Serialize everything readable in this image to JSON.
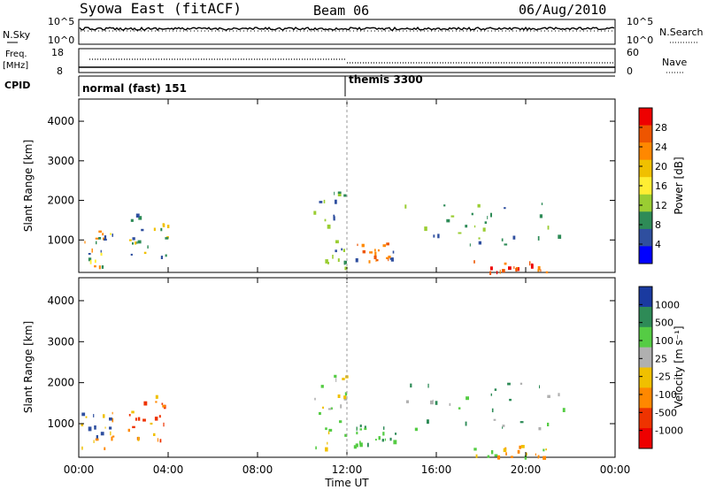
{
  "header": {
    "title": "Syowa East (fitACF)",
    "beam": "Beam 06",
    "date": "06/Aug/2010"
  },
  "top_panels": {
    "nsky_label": "N.Sky",
    "nsky_ticks": [
      "10^5",
      "10^0"
    ],
    "nsearch_label": "N.Search",
    "nsearch_ticks": [
      "10^5",
      "10^0"
    ],
    "freq_label": "Freq.",
    "freq_unit": "[MHz]",
    "freq_ticks": [
      "18",
      "8"
    ],
    "nave_label": "Nave",
    "nave_ticks": [
      "60",
      "0"
    ],
    "cpid_label": "CPID",
    "modes": [
      "normal (fast) 151",
      "themis 3300"
    ]
  },
  "x_axis": {
    "title": "Time UT",
    "ticks": [
      "00:00",
      "04:00",
      "08:00",
      "12:00",
      "16:00",
      "20:00",
      "00:00"
    ]
  },
  "chart_data": [
    {
      "type": "heatmap",
      "name": "power",
      "ylabel": "Slant Range [km]",
      "yticks": [
        "1000",
        "2000",
        "3000",
        "4000"
      ],
      "ylim": [
        180,
        4560
      ],
      "xlim_hours": [
        0,
        24
      ],
      "colorbar_label": "Power [dB]",
      "colorbar_ticks": [
        "28",
        "24",
        "20",
        "16",
        "12",
        "8",
        "4"
      ],
      "colorbar_colors": [
        "#ee0000",
        "#ee5500",
        "#ff8800",
        "#f0c000",
        "#ffee33",
        "#9acd32",
        "#2e8b57",
        "#2f4f9f",
        "#0000ff"
      ],
      "regions": [
        {
          "t0": 0.1,
          "t1": 1.5,
          "r0": 300,
          "r1": 1300,
          "colors": [
            "#2e8b57",
            "#2f4f9f",
            "#ffee33",
            "#ff8800"
          ]
        },
        {
          "t0": 2.2,
          "t1": 4.0,
          "r0": 600,
          "r1": 1700,
          "colors": [
            "#2f4f9f",
            "#2e8b57",
            "#f0c000"
          ]
        },
        {
          "t0": 10.5,
          "t1": 12.0,
          "r0": 300,
          "r1": 2300,
          "colors": [
            "#2f4f9f",
            "#2e8b57",
            "#9acd32"
          ]
        },
        {
          "t0": 12.3,
          "t1": 14.2,
          "r0": 450,
          "r1": 1000,
          "colors": [
            "#ff8800",
            "#ee5500",
            "#2f4f9f"
          ]
        },
        {
          "t0": 14.5,
          "t1": 22.2,
          "r0": 900,
          "r1": 2000,
          "colors": [
            "#2f4f9f",
            "#2e8b57",
            "#9acd32"
          ]
        },
        {
          "t0": 17.5,
          "t1": 21.0,
          "r0": 200,
          "r1": 500,
          "colors": [
            "#ee0000",
            "#ee5500",
            "#ff8800"
          ]
        }
      ]
    },
    {
      "type": "heatmap",
      "name": "velocity",
      "ylabel": "Slant Range [km]",
      "yticks": [
        "1000",
        "2000",
        "3000",
        "4000"
      ],
      "ylim": [
        180,
        4560
      ],
      "xlim_hours": [
        0,
        24
      ],
      "colorbar_label": "Velocity [m s⁻¹]",
      "colorbar_ticks": [
        "1000",
        "500",
        "100",
        "25",
        "-25",
        "-100",
        "-500",
        "-1000"
      ],
      "colorbar_colors": [
        "#1a3aa0",
        "#2e8b57",
        "#55cc44",
        "#b0b0b0",
        "#f0c000",
        "#ff8800",
        "#ee3300",
        "#ee0000"
      ],
      "regions": [
        {
          "t0": 0.1,
          "t1": 1.5,
          "r0": 300,
          "r1": 1300,
          "colors": [
            "#ff8800",
            "#f0c000",
            "#2f4f9f"
          ]
        },
        {
          "t0": 2.2,
          "t1": 4.0,
          "r0": 600,
          "r1": 1700,
          "colors": [
            "#ff8800",
            "#f0c000",
            "#ee3300"
          ]
        },
        {
          "t0": 10.5,
          "t1": 12.0,
          "r0": 300,
          "r1": 2300,
          "colors": [
            "#55cc44",
            "#b0b0b0",
            "#f0c000"
          ]
        },
        {
          "t0": 12.3,
          "t1": 14.2,
          "r0": 450,
          "r1": 1000,
          "colors": [
            "#2e8b57",
            "#55cc44"
          ]
        },
        {
          "t0": 14.5,
          "t1": 22.2,
          "r0": 900,
          "r1": 2000,
          "colors": [
            "#55cc44",
            "#2e8b57",
            "#b0b0b0"
          ]
        },
        {
          "t0": 17.5,
          "t1": 21.0,
          "r0": 200,
          "r1": 500,
          "colors": [
            "#ff8800",
            "#f0c000",
            "#55cc44"
          ]
        }
      ]
    }
  ]
}
